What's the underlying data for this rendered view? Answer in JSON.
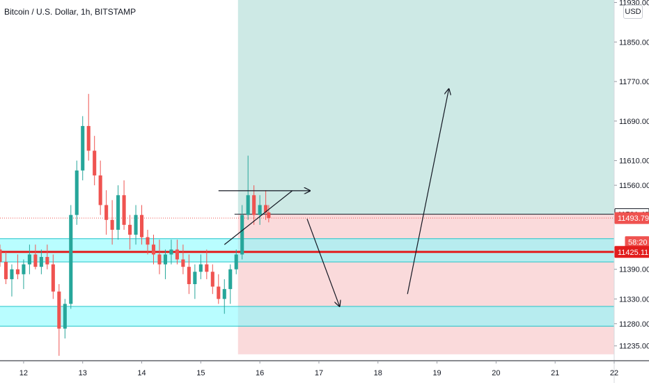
{
  "header": {
    "title": "Bitcoin / U.S. Dollar, 1h, BITSTAMP",
    "currency_button": "USD"
  },
  "colors": {
    "up": "#26a69a",
    "down": "#ef5350",
    "target_zone": "#cde9e5",
    "stop_zone": "#fadadb",
    "support_band": "#7ffcff",
    "key_level": "#e21d1d",
    "annotation": "#131722"
  },
  "chart_data": {
    "type": "candlestick",
    "symbol": "Bitcoin / U.S. Dollar",
    "interval": "1h",
    "exchange": "BITSTAMP",
    "currency": "USD",
    "ylim": [
      11205,
      11935
    ],
    "xlim": [
      11.6,
      22.0
    ],
    "x_ticks": [
      "12",
      "13",
      "14",
      "15",
      "16",
      "17",
      "18",
      "19",
      "20",
      "21",
      "22"
    ],
    "y_ticks": [
      11930.0,
      11850.0,
      11770.0,
      11690.0,
      11610.0,
      11560.0,
      11390.0,
      11330.0,
      11280.0,
      11235.0
    ],
    "price_labels": [
      {
        "text": "11501.42",
        "value": 11501.42,
        "kind": "entry"
      },
      {
        "text": "11493.79",
        "value": 11493.79,
        "kind": "last"
      },
      {
        "text": "58:20",
        "value": 11445,
        "kind": "countdown"
      },
      {
        "text": "11425.11",
        "value": 11425.11,
        "kind": "key-level"
      }
    ],
    "key_level": 11425.11,
    "last_price": 11493.79,
    "support_bands": [
      {
        "from": 11405,
        "to": 11452
      },
      {
        "from": 11275,
        "to": 11315
      }
    ],
    "position": {
      "start": 15.63,
      "end": 22.0,
      "entry": 11501.42,
      "target": 11935,
      "stop": 11218
    },
    "candles": [
      [
        11.6,
        11430,
        11440,
        11395,
        11405
      ],
      [
        11.7,
        11405,
        11425,
        11360,
        11370
      ],
      [
        11.8,
        11370,
        11400,
        11335,
        11390
      ],
      [
        11.9,
        11390,
        11420,
        11370,
        11380
      ],
      [
        12.0,
        11380,
        11410,
        11350,
        11400
      ],
      [
        12.1,
        11400,
        11440,
        11380,
        11420
      ],
      [
        12.2,
        11420,
        11440,
        11390,
        11395
      ],
      [
        12.3,
        11395,
        11430,
        11380,
        11415
      ],
      [
        12.4,
        11415,
        11440,
        11390,
        11400
      ],
      [
        12.5,
        11400,
        11420,
        11330,
        11345
      ],
      [
        12.6,
        11345,
        11360,
        11215,
        11270
      ],
      [
        12.7,
        11270,
        11330,
        11250,
        11320
      ],
      [
        12.8,
        11320,
        11520,
        11310,
        11500
      ],
      [
        12.9,
        11500,
        11610,
        11480,
        11590
      ],
      [
        13.0,
        11590,
        11700,
        11570,
        11680
      ],
      [
        13.1,
        11680,
        11745,
        11610,
        11630
      ],
      [
        13.2,
        11630,
        11660,
        11560,
        11580
      ],
      [
        13.3,
        11580,
        11610,
        11500,
        11520
      ],
      [
        13.4,
        11520,
        11550,
        11460,
        11490
      ],
      [
        13.5,
        11490,
        11530,
        11440,
        11470
      ],
      [
        13.6,
        11470,
        11560,
        11450,
        11540
      ],
      [
        13.7,
        11540,
        11570,
        11470,
        11480
      ],
      [
        13.8,
        11480,
        11500,
        11430,
        11460
      ],
      [
        13.9,
        11460,
        11520,
        11440,
        11500
      ],
      [
        14.0,
        11500,
        11520,
        11440,
        11455
      ],
      [
        14.1,
        11455,
        11470,
        11420,
        11440
      ],
      [
        14.2,
        11440,
        11460,
        11400,
        11420
      ],
      [
        14.3,
        11420,
        11450,
        11380,
        11400
      ],
      [
        14.4,
        11400,
        11430,
        11370,
        11420
      ],
      [
        14.5,
        11420,
        11450,
        11400,
        11430
      ],
      [
        14.6,
        11430,
        11450,
        11400,
        11410
      ],
      [
        14.7,
        11410,
        11440,
        11380,
        11395
      ],
      [
        14.8,
        11395,
        11420,
        11340,
        11360
      ],
      [
        14.9,
        11360,
        11400,
        11330,
        11385
      ],
      [
        15.0,
        11385,
        11420,
        11370,
        11400
      ],
      [
        15.1,
        11400,
        11430,
        11370,
        11385
      ],
      [
        15.2,
        11385,
        11400,
        11340,
        11355
      ],
      [
        15.3,
        11355,
        11380,
        11320,
        11330
      ],
      [
        15.4,
        11330,
        11370,
        11300,
        11350
      ],
      [
        15.5,
        11350,
        11400,
        11320,
        11390
      ],
      [
        15.6,
        11390,
        11430,
        11380,
        11420
      ],
      [
        15.7,
        11420,
        11520,
        11410,
        11500
      ],
      [
        15.8,
        11500,
        11620,
        11490,
        11540
      ],
      [
        15.9,
        11540,
        11560,
        11480,
        11500
      ],
      [
        16.0,
        11500,
        11540,
        11480,
        11520
      ],
      [
        16.1,
        11520,
        11550,
        11490,
        11505
      ],
      [
        16.15,
        11505,
        11520,
        11485,
        11494
      ]
    ],
    "annotations": [
      {
        "kind": "arrow",
        "from": [
          15.3,
          11549
        ],
        "to": [
          16.85,
          11549
        ]
      },
      {
        "kind": "line",
        "from": [
          15.4,
          11440
        ],
        "to": [
          16.55,
          11549
        ]
      },
      {
        "kind": "arrow",
        "from": [
          16.8,
          11492
        ],
        "to": [
          17.35,
          11315
        ]
      },
      {
        "kind": "arrow",
        "from": [
          18.5,
          11340
        ],
        "to": [
          19.2,
          11755
        ]
      }
    ]
  }
}
